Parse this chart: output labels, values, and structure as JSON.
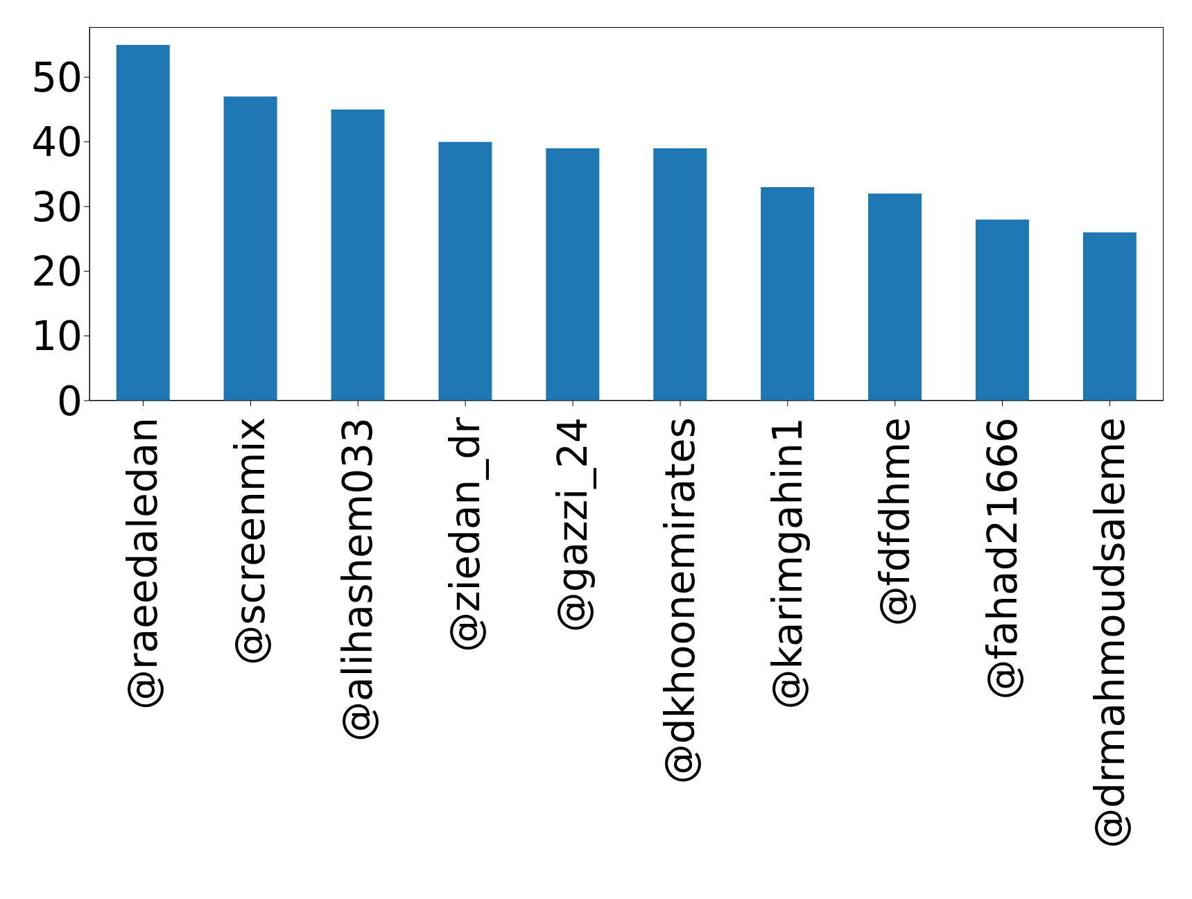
{
  "chart_data": {
    "type": "bar",
    "categories": [
      "@raeedaledan",
      "@screenmix",
      "@alihashem033",
      "@ziedan_dr",
      "@gazzi_24",
      "@dkhoonemirates",
      "@karimgahin1",
      "@fdfdhme",
      "@fahad21666",
      "@drmahmoudsaleme"
    ],
    "values": [
      55,
      47,
      45,
      40,
      39,
      39,
      33,
      32,
      28,
      26
    ],
    "color": "#1f77b4",
    "ylim": [
      0,
      57.75
    ],
    "yticks": [
      0,
      10,
      20,
      30,
      40,
      50
    ],
    "grid": false
  }
}
